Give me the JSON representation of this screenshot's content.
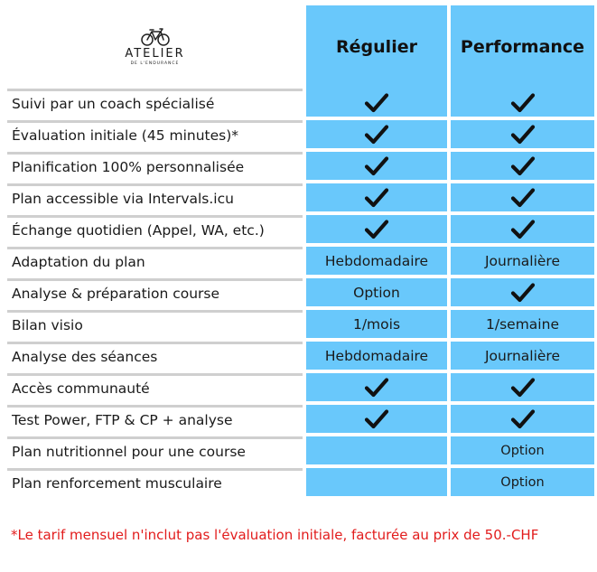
{
  "logo": {
    "name": "ATELIER",
    "subtitle": "DE L'ENDURANCE",
    "icon": "bicycle-icon"
  },
  "columns": [
    "Régulier",
    "Performance"
  ],
  "rows": [
    {
      "label": "Suivi par un coach spécialisé",
      "regular": "check",
      "performance": "check"
    },
    {
      "label": "Évaluation initiale (45 minutes)*",
      "regular": "check",
      "performance": "check"
    },
    {
      "label": "Planification 100% personnalisée",
      "regular": "check",
      "performance": "check"
    },
    {
      "label": "Plan accessible via Intervals.icu",
      "regular": "check",
      "performance": "check"
    },
    {
      "label": "Échange quotidien (Appel, WA, etc.)",
      "regular": "check",
      "performance": "check"
    },
    {
      "label": "Adaptation du plan",
      "regular": "Hebdomadaire",
      "performance": "Journalière"
    },
    {
      "label": "Analyse & préparation course",
      "regular": "Option",
      "performance": "check"
    },
    {
      "label": "Bilan visio",
      "regular": "1/mois",
      "performance": "1/semaine"
    },
    {
      "label": "Analyse des séances",
      "regular": "Hebdomadaire",
      "performance": "Journalière"
    },
    {
      "label": "Accès communauté",
      "regular": "check",
      "performance": "check"
    },
    {
      "label": "Test Power, FTP & CP + analyse",
      "regular": "check",
      "performance": "check"
    },
    {
      "label": "Plan nutritionnel pour une course",
      "regular": "",
      "performance": "Option"
    },
    {
      "label": "Plan renforcement musculaire",
      "regular": "",
      "performance": "Option"
    }
  ],
  "footnote": "*Le tarif mensuel n'inclut pas l'évaluation initiale, facturée au prix de 50.-CHF",
  "colors": {
    "column_bg": "#69c8fb",
    "divider": "#cfcfcf",
    "footnote": "#e21c1c"
  }
}
